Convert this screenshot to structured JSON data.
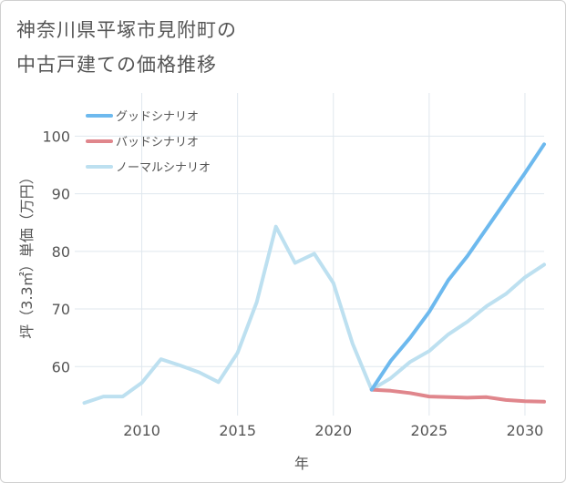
{
  "title_line1": "神奈川県平塚市見附町の",
  "title_line2": "中古戸建ての価格推移",
  "chart_data": {
    "type": "line",
    "title": "神奈川県平塚市見附町の中古戸建ての価格推移",
    "xlabel": "年",
    "ylabel": "坪（3.3㎡）単価（万円）",
    "xlim": [
      2006.5,
      2031
    ],
    "ylim": [
      51.5,
      107.5
    ],
    "x_ticks": [
      2010,
      2015,
      2020,
      2025,
      2030
    ],
    "y_ticks": [
      60,
      70,
      80,
      90,
      100
    ],
    "grid": true,
    "legend_position": "top-left",
    "series": [
      {
        "name": "グッドシナリオ",
        "color": "#6db9ee",
        "x": [
          2022,
          2023,
          2024,
          2025,
          2026,
          2027,
          2028,
          2029,
          2030,
          2031
        ],
        "y": [
          56.0,
          61.0,
          65.0,
          69.5,
          75.0,
          79.2,
          84.0,
          88.8,
          93.6,
          98.6
        ]
      },
      {
        "name": "バッドシナリオ",
        "color": "#e0868c",
        "x": [
          2022,
          2023,
          2024,
          2025,
          2026,
          2027,
          2028,
          2029,
          2030,
          2031
        ],
        "y": [
          56.0,
          55.8,
          55.4,
          54.8,
          54.7,
          54.6,
          54.7,
          54.2,
          54.0,
          53.9
        ]
      },
      {
        "name": "ノーマルシナリオ",
        "color": "#bde0f0",
        "x": [
          2007,
          2008,
          2009,
          2010,
          2011,
          2012,
          2013,
          2014,
          2015,
          2016,
          2017,
          2018,
          2019,
          2020,
          2021,
          2022,
          2023,
          2024,
          2025,
          2026,
          2027,
          2028,
          2029,
          2030,
          2031
        ],
        "y": [
          53.7,
          54.8,
          54.8,
          57.2,
          61.3,
          60.2,
          59.0,
          57.3,
          62.4,
          71.2,
          84.3,
          78.0,
          79.6,
          74.5,
          64.0,
          56.0,
          58.0,
          60.8,
          62.7,
          65.6,
          67.8,
          70.5,
          72.6,
          75.5,
          77.7
        ]
      }
    ]
  }
}
